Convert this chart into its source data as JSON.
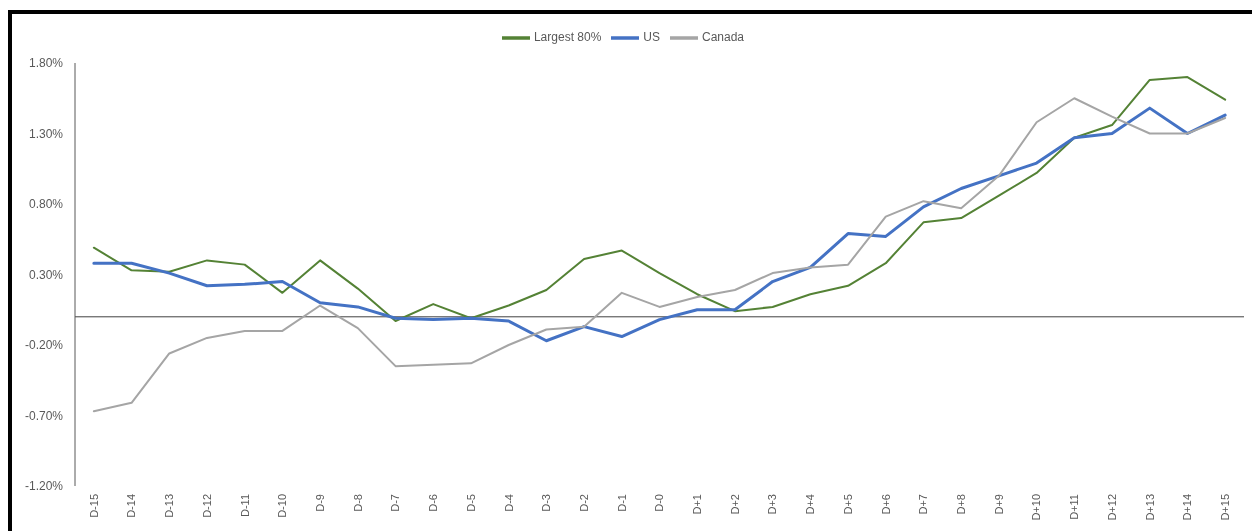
{
  "chart_data": {
    "type": "line",
    "categories": [
      "D-15",
      "D-14",
      "D-13",
      "D-12",
      "D-11",
      "D-10",
      "D-9",
      "D-8",
      "D-7",
      "D-6",
      "D-5",
      "D-4",
      "D-3",
      "D-2",
      "D-1",
      "D-0",
      "D+1",
      "D+2",
      "D+3",
      "D+4",
      "D+5",
      "D+6",
      "D+7",
      "D+8",
      "D+9",
      "D+10",
      "D+11",
      "D+12",
      "D+13",
      "D+14",
      "D+15"
    ],
    "series": [
      {
        "name": "Largest 80%",
        "color": "#548235",
        "values": [
          0.49,
          0.33,
          0.32,
          0.4,
          0.37,
          0.17,
          0.4,
          0.2,
          -0.03,
          0.09,
          -0.01,
          0.08,
          0.19,
          0.41,
          0.47,
          0.31,
          0.16,
          0.04,
          0.07,
          0.16,
          0.22,
          0.38,
          0.67,
          0.7,
          0.86,
          1.02,
          1.27,
          1.36,
          1.68,
          1.7,
          1.54
        ]
      },
      {
        "name": "US",
        "color": "#4472c4",
        "values": [
          0.38,
          0.38,
          0.31,
          0.22,
          0.23,
          0.25,
          0.1,
          0.07,
          -0.01,
          -0.02,
          -0.01,
          -0.03,
          -0.17,
          -0.07,
          -0.14,
          -0.02,
          0.05,
          0.05,
          0.25,
          0.35,
          0.59,
          0.57,
          0.78,
          0.91,
          1.0,
          1.09,
          1.27,
          1.3,
          1.48,
          1.3,
          1.43
        ]
      },
      {
        "name": "Canada",
        "color": "#a5a5a5",
        "values": [
          -0.67,
          -0.61,
          -0.26,
          -0.15,
          -0.1,
          -0.1,
          0.08,
          -0.08,
          -0.35,
          -0.34,
          -0.33,
          -0.2,
          -0.09,
          -0.07,
          0.17,
          0.07,
          0.14,
          0.19,
          0.31,
          0.35,
          0.37,
          0.71,
          0.82,
          0.77,
          1.0,
          1.38,
          1.55,
          1.42,
          1.3,
          1.3,
          1.41
        ]
      }
    ],
    "ylim": [
      -1.2,
      1.8
    ],
    "yticks": [
      {
        "value": -1.2,
        "label": "-1.20%"
      },
      {
        "value": -0.7,
        "label": "-0.70%"
      },
      {
        "value": -0.2,
        "label": "-0.20%"
      },
      {
        "value": 0.3,
        "label": "0.30%"
      },
      {
        "value": 0.8,
        "label": "0.80%"
      },
      {
        "value": 1.3,
        "label": "1.30%"
      },
      {
        "value": 1.8,
        "label": "1.80%"
      }
    ],
    "ref_lines": [
      {
        "axis": "y",
        "value": 0,
        "color": "#404040"
      }
    ],
    "legend": "top",
    "marker": "none",
    "line_style": "solid"
  }
}
